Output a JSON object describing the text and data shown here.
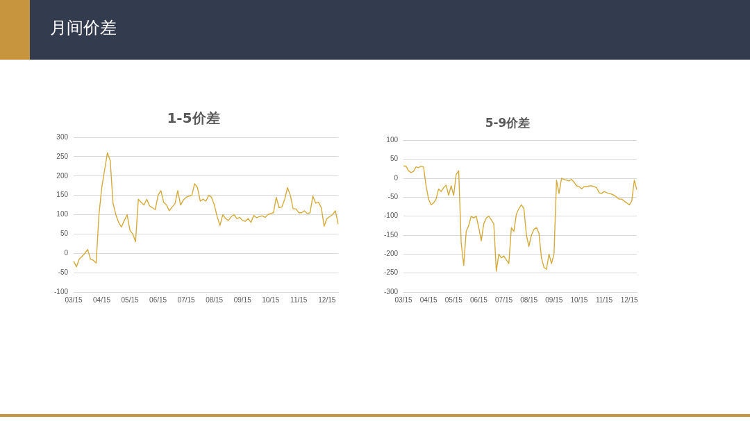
{
  "chart_data": [
    {
      "type": "other",
      "title": "月间价差"
    },
    {
      "type": "line",
      "title": "1-5价差",
      "categories": [
        "03/15",
        null,
        null,
        null,
        null,
        null,
        null,
        null,
        null,
        null,
        "04/15",
        null,
        null,
        null,
        null,
        null,
        null,
        null,
        null,
        null,
        "05/15",
        null,
        null,
        null,
        null,
        null,
        null,
        null,
        null,
        null,
        "06/15",
        null,
        null,
        null,
        null,
        null,
        null,
        null,
        null,
        null,
        "07/15",
        null,
        null,
        null,
        null,
        null,
        null,
        null,
        null,
        null,
        "08/15",
        null,
        null,
        null,
        null,
        null,
        null,
        null,
        null,
        null,
        "09/15",
        null,
        null,
        null,
        null,
        null,
        null,
        null,
        null,
        null,
        "10/15",
        null,
        null,
        null,
        null,
        null,
        null,
        null,
        null,
        null,
        "11/15",
        null,
        null,
        null,
        null,
        null,
        null,
        null,
        null,
        null,
        "12/15",
        null,
        null,
        null,
        null
      ],
      "series": [
        {
          "color": "#d4aa3a",
          "values": [
            -20,
            -35,
            -15,
            -8,
            0,
            10,
            -15,
            -18,
            -25,
            100,
            170,
            215,
            260,
            240,
            130,
            100,
            80,
            68,
            85,
            100,
            60,
            50,
            30,
            140,
            132,
            125,
            140,
            122,
            118,
            113,
            150,
            162,
            132,
            125,
            110,
            120,
            128,
            162,
            125,
            138,
            145,
            148,
            150,
            180,
            170,
            135,
            140,
            135,
            150,
            145,
            125,
            95,
            72,
            100,
            90,
            85,
            95,
            100,
            90,
            93,
            85,
            83,
            90,
            80,
            98,
            92,
            95,
            97,
            93,
            100,
            103,
            105,
            145,
            118,
            120,
            140,
            170,
            150,
            115,
            115,
            105,
            105,
            110,
            103,
            105,
            148,
            130,
            132,
            118,
            70,
            90,
            95,
            100,
            110,
            75
          ]
        }
      ],
      "ylim": [
        -100,
        300
      ],
      "yticks": [
        -100,
        -50,
        0,
        50,
        100,
        150,
        200,
        250,
        300
      ],
      "grid": "y"
    },
    {
      "type": "line",
      "title": "5-9价差",
      "categories": [
        "03/15",
        null,
        null,
        null,
        null,
        null,
        null,
        null,
        null,
        null,
        "04/15",
        null,
        null,
        null,
        null,
        null,
        null,
        null,
        null,
        null,
        "05/15",
        null,
        null,
        null,
        null,
        null,
        null,
        null,
        null,
        null,
        "06/15",
        null,
        null,
        null,
        null,
        null,
        null,
        null,
        null,
        null,
        "07/15",
        null,
        null,
        null,
        null,
        null,
        null,
        null,
        null,
        null,
        "08/15",
        null,
        null,
        null,
        null,
        null,
        null,
        null,
        null,
        null,
        "09/15",
        null,
        null,
        null,
        null,
        null,
        null,
        null,
        null,
        null,
        "10/15",
        null,
        null,
        null,
        null,
        null,
        null,
        null,
        null,
        null,
        "11/15",
        null,
        null,
        null,
        null,
        null,
        null,
        null,
        null,
        null,
        "12/15",
        null,
        null,
        null
      ],
      "series": [
        {
          "color": "#d4aa3a",
          "values": [
            32,
            32,
            20,
            15,
            18,
            30,
            28,
            32,
            30,
            -20,
            -55,
            -70,
            -65,
            -55,
            -28,
            -35,
            -25,
            -18,
            -45,
            -20,
            -45,
            10,
            20,
            -170,
            -230,
            -140,
            -125,
            -100,
            -105,
            -100,
            -130,
            -165,
            -120,
            -105,
            -100,
            -110,
            -120,
            -245,
            -200,
            -210,
            -205,
            -215,
            -225,
            -130,
            -140,
            -95,
            -80,
            -70,
            -80,
            -150,
            -180,
            -150,
            -135,
            -130,
            -145,
            -210,
            -235,
            -240,
            -200,
            -225,
            -200,
            -5,
            -40,
            0,
            -3,
            -5,
            -7,
            -3,
            -10,
            -20,
            -22,
            -28,
            -22,
            -22,
            -20,
            -20,
            -22,
            -25,
            -38,
            -40,
            -35,
            -38,
            -40,
            -42,
            -45,
            -50,
            -55,
            -55,
            -60,
            -65,
            -70,
            -60,
            -5,
            -30
          ]
        }
      ],
      "ylim": [
        -300,
        100
      ],
      "yticks": [
        -300,
        -250,
        -200,
        -150,
        -100,
        -50,
        0,
        50,
        100
      ],
      "grid": "y"
    }
  ]
}
